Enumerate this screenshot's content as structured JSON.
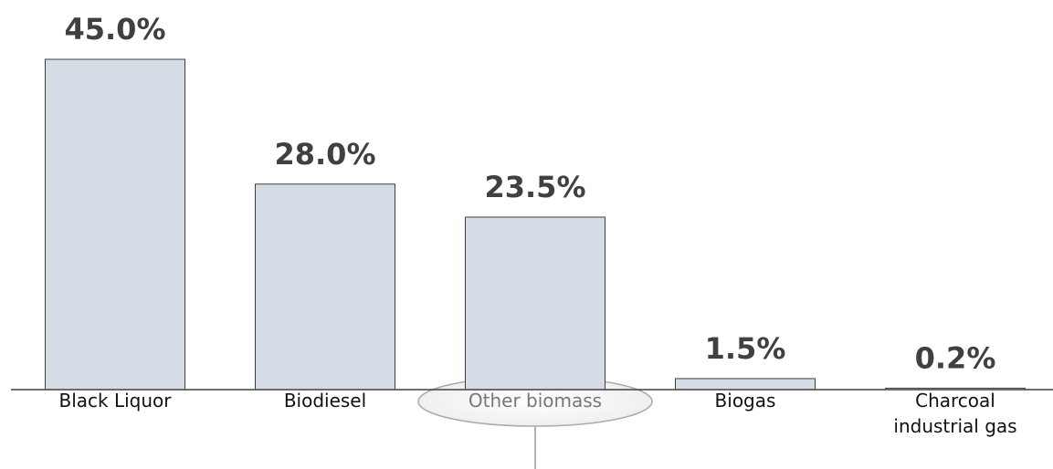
{
  "chart_data": {
    "type": "bar",
    "categories": [
      "Black Liquor",
      "Biodiesel",
      "Other biomass",
      "Biogas",
      "Charcoal industrial gas"
    ],
    "values": [
      45.0,
      28.0,
      23.5,
      1.5,
      0.2
    ],
    "value_labels": [
      "45.0%",
      "28.0%",
      "23.5%",
      "1.5%",
      "0.2%"
    ],
    "color": "#d6dce5"
  }
}
